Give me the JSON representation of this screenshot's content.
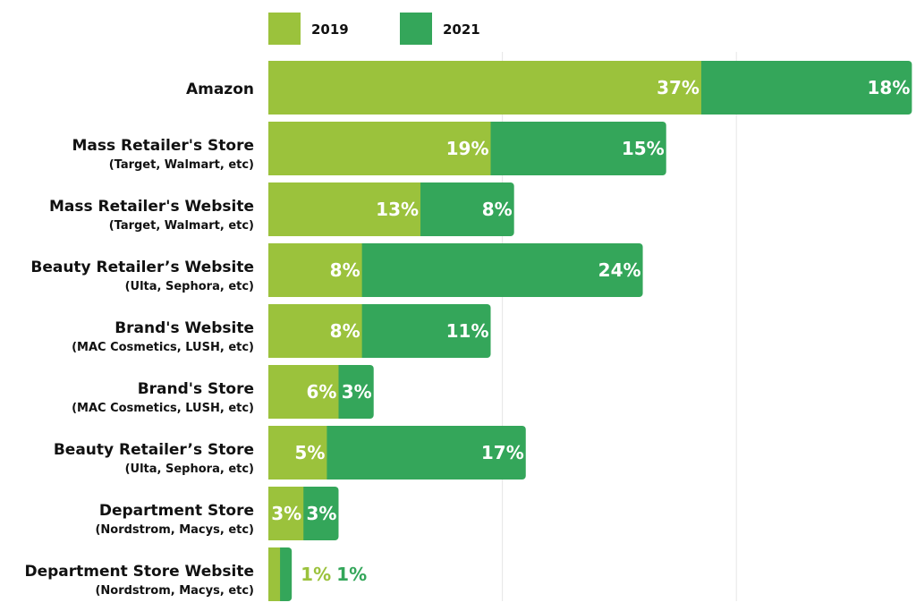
{
  "chart_data": {
    "type": "bar",
    "orientation": "horizontal",
    "stacked": true,
    "legend_position": "top",
    "grid": true,
    "colors": {
      "2019": "#9bc23c",
      "2021": "#34a65a"
    },
    "categories": [
      {
        "label": "Amazon",
        "sublabel": ""
      },
      {
        "label": "Mass Retailer's Store",
        "sublabel": "(Target, Walmart, etc)"
      },
      {
        "label": "Mass Retailer's Website",
        "sublabel": "(Target, Walmart, etc)"
      },
      {
        "label": "Beauty Retailer’s Website",
        "sublabel": "(Ulta, Sephora, etc)"
      },
      {
        "label": "Brand's Website",
        "sublabel": "(MAC Cosmetics, LUSH, etc)"
      },
      {
        "label": "Brand's Store",
        "sublabel": "(MAC Cosmetics, LUSH, etc)"
      },
      {
        "label": "Beauty Retailer’s Store",
        "sublabel": "(Ulta, Sephora, etc)"
      },
      {
        "label": "Department Store",
        "sublabel": "(Nordstrom, Macys, etc)"
      },
      {
        "label": "Department Store Website",
        "sublabel": "(Nordstrom, Macys, etc)"
      }
    ],
    "series": [
      {
        "name": "2019",
        "values": [
          37,
          19,
          13,
          8,
          8,
          6,
          5,
          3,
          1
        ],
        "labels": [
          "37%",
          "19%",
          "13%",
          "8%",
          "8%",
          "6%",
          "5%",
          "3%",
          "1%"
        ]
      },
      {
        "name": "2021",
        "values": [
          18,
          15,
          8,
          24,
          11,
          3,
          17,
          3,
          1
        ],
        "labels": [
          "18%",
          "15%",
          "8%",
          "24%",
          "11%",
          "3%",
          "17%",
          "3%",
          "1%"
        ]
      }
    ],
    "xlim": [
      0,
      55
    ]
  }
}
